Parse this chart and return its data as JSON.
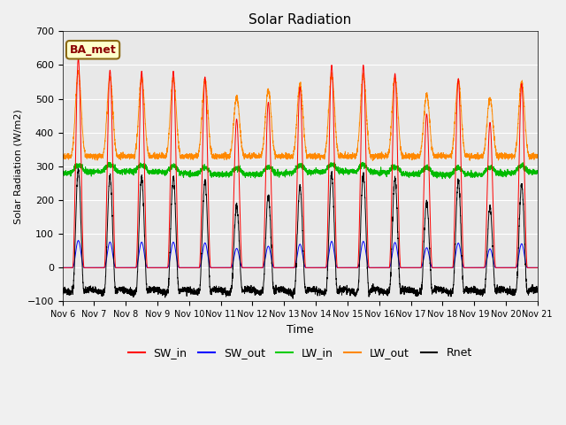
{
  "title": "Solar Radiation",
  "ylabel": "Solar Radiation (W/m2)",
  "xlabel": "Time",
  "annotation": "BA_met",
  "ylim": [
    -100,
    700
  ],
  "x_tick_labels": [
    "Nov 6",
    "Nov 7",
    "Nov 8",
    "Nov 9",
    "Nov 10",
    "Nov 11",
    "Nov 12",
    "Nov 13",
    "Nov 14",
    "Nov 15",
    "Nov 16",
    "Nov 17",
    "Nov 18",
    "Nov 19",
    "Nov 20",
    "Nov 21"
  ],
  "legend_labels": [
    "SW_in",
    "SW_out",
    "LW_in",
    "LW_out",
    "Rnet"
  ],
  "legend_colors": [
    "#ff0000",
    "#0000ff",
    "#00cc00",
    "#ff8800",
    "#000000"
  ],
  "sw_in_peaks": [
    620,
    585,
    582,
    582,
    565,
    440,
    490,
    535,
    600,
    600,
    575,
    455,
    560,
    430,
    545
  ],
  "lw_in_night": 280,
  "lw_out_night": 330,
  "rnet_night": -70,
  "n_days": 15,
  "pts_per_day": 288
}
